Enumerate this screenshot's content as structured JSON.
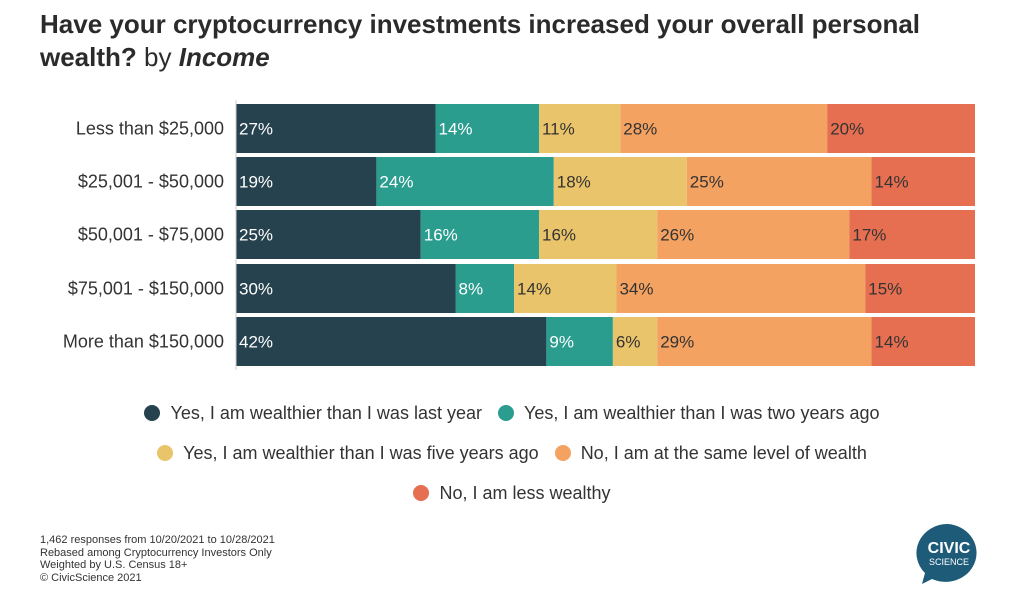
{
  "title": {
    "main": "Have your cryptocurrency investments increased your overall personal wealth?",
    "by": "by",
    "dimension": "Income"
  },
  "chart_data": {
    "type": "bar",
    "orientation": "horizontal",
    "stacked": true,
    "title": "Have your cryptocurrency investments increased your overall personal wealth? by Income",
    "categories": [
      "Less than $25,000",
      "$25,001 - $50,000",
      "$50,001 - $75,000",
      "$75,001 - $150,000",
      "More than $150,000"
    ],
    "series": [
      {
        "name": "Yes, I am wealthier than I was last year",
        "color": "#27424f",
        "values": [
          27,
          19,
          25,
          30,
          42
        ]
      },
      {
        "name": "Yes, I am wealthier than I was two years ago",
        "color": "#2a9d8f",
        "values": [
          14,
          24,
          16,
          8,
          9
        ]
      },
      {
        "name": "Yes, I am wealthier than I was five years ago",
        "color": "#e9c46a",
        "values": [
          11,
          18,
          16,
          14,
          6
        ]
      },
      {
        "name": "No, I am at the same level of wealth",
        "color": "#f4a261",
        "values": [
          28,
          25,
          26,
          34,
          29
        ]
      },
      {
        "name": "No, I am less wealthy",
        "color": "#e76f51",
        "values": [
          20,
          14,
          17,
          15,
          14
        ]
      }
    ],
    "xlim": [
      0,
      100
    ],
    "value_suffix": "%",
    "grid": false,
    "legend_position": "bottom"
  },
  "label_colors": [
    "#ffffff",
    "#ffffff",
    "#333333",
    "#333333",
    "#333333"
  ],
  "legend_rows": [
    [
      0,
      1
    ],
    [
      2,
      3
    ],
    [
      4
    ]
  ],
  "footnotes": [
    "1,462 responses from 10/20/2021 to 10/28/2021",
    "Rebased among Cryptocurrency Investors Only",
    "Weighted by U.S. Census 18+",
    "© CivicScience 2021"
  ],
  "logo": {
    "line1": "CIVIC",
    "line2": "SCIENCE",
    "color": "#1d5b78"
  }
}
